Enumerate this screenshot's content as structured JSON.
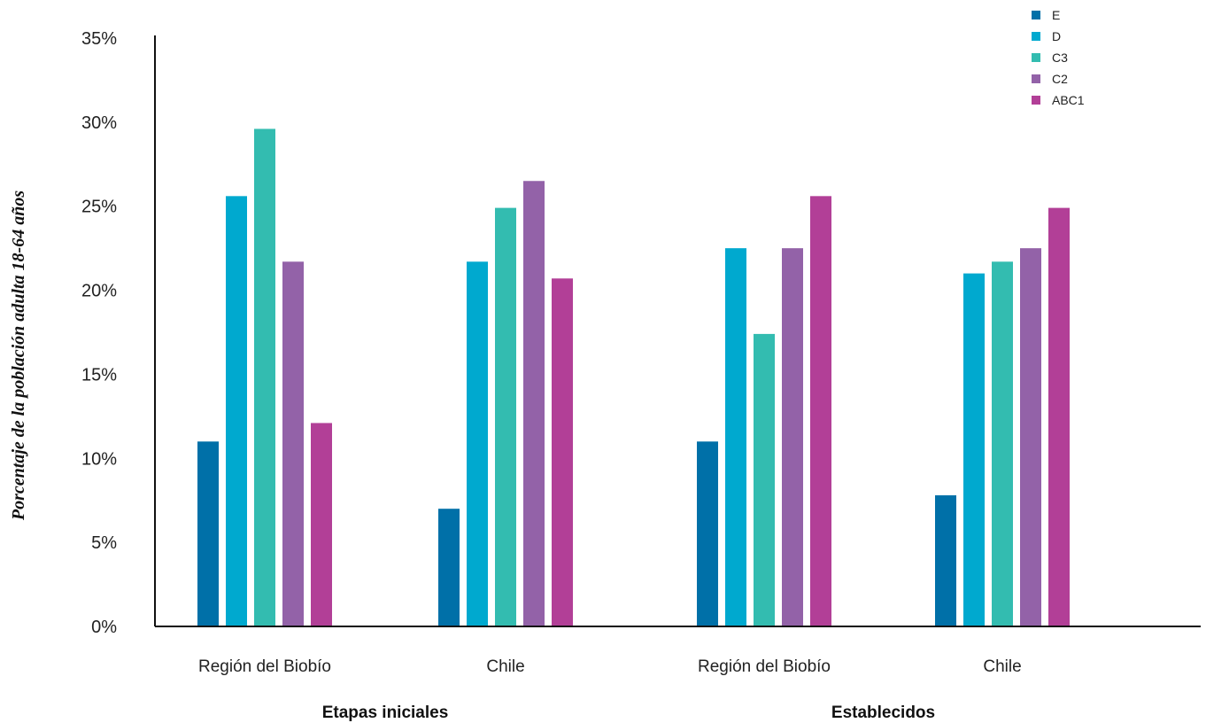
{
  "chart_data": {
    "type": "bar",
    "ylabel": "Porcentaje de la población adulta 18-64 años",
    "ylim": [
      0,
      35
    ],
    "yticks": [
      "0%",
      "5%",
      "10%",
      "15%",
      "20%",
      "25%",
      "30%",
      "35%"
    ],
    "ytick_values": [
      0,
      5,
      10,
      15,
      20,
      25,
      30,
      35
    ],
    "grid": false,
    "legend_position": "top-right",
    "categories": [
      "Región del Biobío",
      "Chile",
      "Región del Biobío",
      "Chile"
    ],
    "groups": [
      {
        "label": "Etapas iniciales",
        "categories": [
          0,
          1
        ]
      },
      {
        "label": "Establecidos",
        "categories": [
          2,
          3
        ]
      }
    ],
    "series": [
      {
        "name": "E",
        "color": "#0070a8",
        "values": [
          11.0,
          7.0,
          11.0,
          7.8
        ]
      },
      {
        "name": "D",
        "color": "#00a9cf",
        "values": [
          25.6,
          21.7,
          22.5,
          21.0
        ]
      },
      {
        "name": "C3",
        "color": "#33bcb0",
        "values": [
          29.6,
          24.9,
          17.4,
          21.7
        ]
      },
      {
        "name": "C2",
        "color": "#9362a8",
        "values": [
          21.7,
          26.5,
          22.5,
          22.5
        ]
      },
      {
        "name": "ABC1",
        "color": "#b23f97",
        "values": [
          12.1,
          20.7,
          25.6,
          24.9
        ]
      }
    ]
  }
}
